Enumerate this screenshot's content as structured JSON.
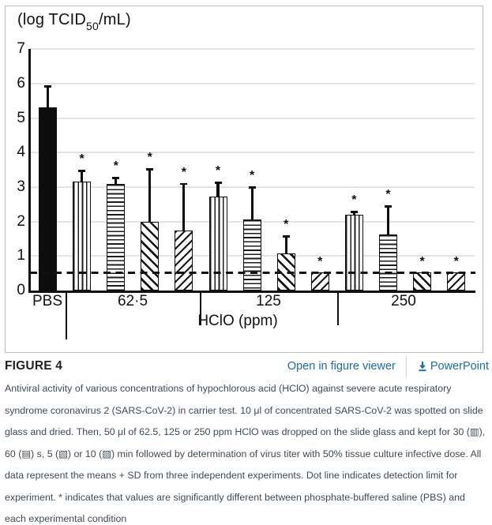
{
  "chart_data": {
    "type": "bar",
    "y_axis_title": {
      "pre": "(log TCID",
      "sub": "50",
      "post": "/mL)"
    },
    "x_axis_title": "HClO (ppm)",
    "ylim": [
      0,
      7
    ],
    "yticks": [
      "0",
      "1",
      "2",
      "3",
      "4",
      "5",
      "6",
      "7"
    ],
    "grid": true,
    "detection_limit_value": 0.52,
    "patterns_legend": {
      "solid": "PBS control",
      "vertical": "30 s",
      "horizontal": "60 s",
      "diag-back": "5 min",
      "diag-fwd": "10 min"
    },
    "groups": [
      {
        "label": "PBS",
        "bars": [
          {
            "pattern": "solid",
            "value": 5.3,
            "err_top": 5.95,
            "significant": false
          }
        ]
      },
      {
        "label": "62·5",
        "bars": [
          {
            "pattern": "vertical",
            "value": 3.15,
            "err_top": 3.5,
            "significant": true
          },
          {
            "pattern": "horizontal",
            "value": 3.08,
            "err_top": 3.3,
            "significant": true
          },
          {
            "pattern": "diag-back",
            "value": 2.0,
            "err_top": 3.55,
            "significant": true
          },
          {
            "pattern": "diag-fwd",
            "value": 1.73,
            "err_top": 3.12,
            "significant": true
          }
        ]
      },
      {
        "label": "125",
        "bars": [
          {
            "pattern": "vertical",
            "value": 2.73,
            "err_top": 3.15,
            "significant": true
          },
          {
            "pattern": "horizontal",
            "value": 2.07,
            "err_top": 3.02,
            "significant": true
          },
          {
            "pattern": "diag-back",
            "value": 1.07,
            "err_top": 1.6,
            "significant": true
          },
          {
            "pattern": "diag-fwd",
            "value": 0.52,
            "err_top": null,
            "significant": true
          }
        ]
      },
      {
        "label": "250",
        "bars": [
          {
            "pattern": "vertical",
            "value": 2.2,
            "err_top": 2.3,
            "significant": true
          },
          {
            "pattern": "horizontal",
            "value": 1.63,
            "err_top": 2.47,
            "significant": true
          },
          {
            "pattern": "diag-back",
            "value": 0.52,
            "err_top": null,
            "significant": true
          },
          {
            "pattern": "diag-fwd",
            "value": 0.52,
            "err_top": null,
            "significant": true
          }
        ]
      }
    ]
  },
  "figure_header": {
    "label": "FIGURE 4",
    "open_in_viewer": "Open in figure viewer",
    "powerpoint": "PowerPoint",
    "powerpoint_icon": "download-icon"
  },
  "caption_lines": [
    "Antiviral activity of various concentrations of hypochlorous acid (HClO) against severe acute respiratory",
    "syndrome coronavirus 2 (SARS-CoV-2) in carrier test. 10 μl of concentrated SARS-CoV-2 was spotted on slide",
    "glass and dried. Then, 50 μl of 62.5, 125 or 250 ppm HClO was dropped on the slide glass and kept for 30 (▥),",
    "60 (▤) s, 5 (▧) or 10 (▨) min followed by determination of virus titer with 50% tissue culture infective dose. All",
    "data represent the means + SD from three independent experiments. Dot line indicates detection limit for",
    "experiment. * indicates that values are significantly different between phosphate-buffered saline (PBS) and",
    "each experimental condition"
  ],
  "colors": {
    "link_blue": "#1b6ca8",
    "bar_black": "#0d0d0d",
    "caption_text": "#3e4a57"
  }
}
